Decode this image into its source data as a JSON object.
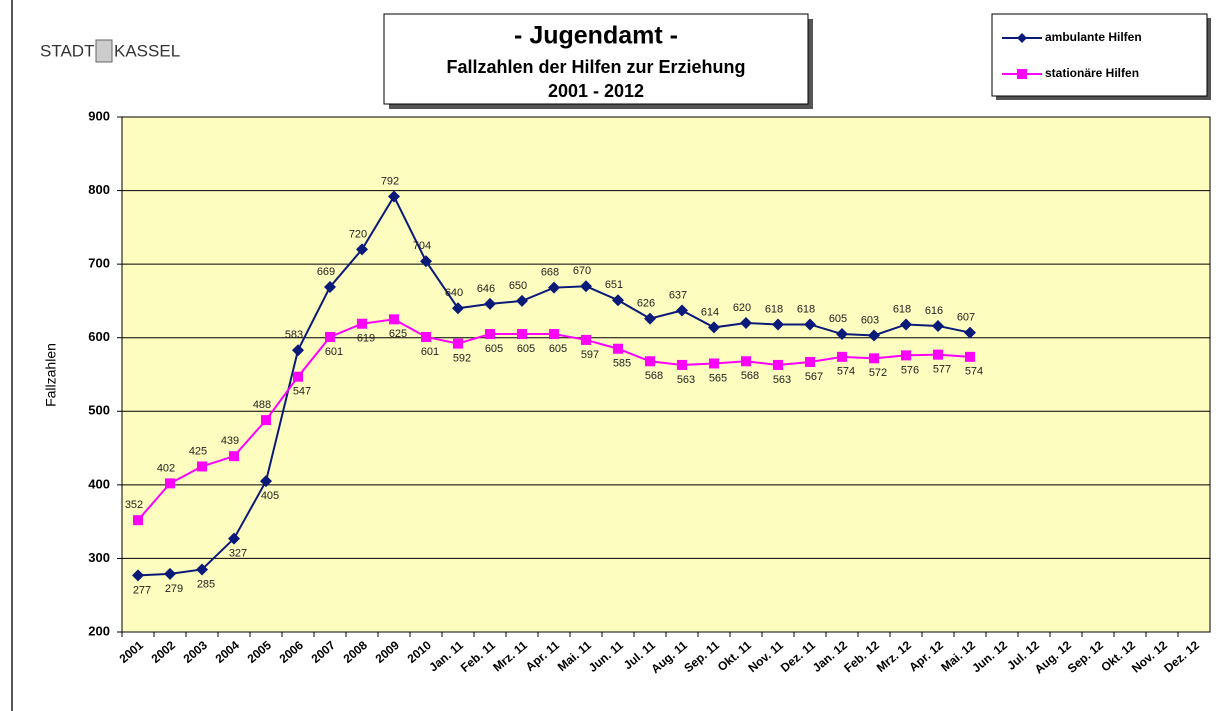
{
  "chart_data": {
    "type": "line",
    "logo": [
      "STADT",
      "KASSEL"
    ],
    "title": "- Jugendamt -",
    "subtitle": [
      "Fallzahlen der Hilfen zur Erziehung",
      "2001 - 2012"
    ],
    "ylabel": "Fallzahlen",
    "categories": [
      "2001",
      "2002",
      "2003",
      "2004",
      "2005",
      "2006",
      "2007",
      "2008",
      "2009",
      "2010",
      "Jan. 11",
      "Feb. 11",
      "Mrz. 11",
      "Apr. 11",
      "Mai. 11",
      "Jun. 11",
      "Jul. 11",
      "Aug. 11",
      "Sep. 11",
      "Okt. 11",
      "Nov. 11",
      "Dez. 11",
      "Jan. 12",
      "Feb. 12",
      "Mrz. 12",
      "Apr. 12",
      "Mai. 12",
      "Jun. 12",
      "Jul. 12",
      "Aug. 12",
      "Sep. 12",
      "Okt. 12",
      "Nov. 12",
      "Dez. 12"
    ],
    "series": [
      {
        "name": "ambulante Hilfen",
        "color": "#0a1a78",
        "marker": "diamond",
        "values": [
          277,
          279,
          285,
          327,
          405,
          583,
          669,
          720,
          792,
          704,
          640,
          646,
          650,
          668,
          670,
          651,
          626,
          637,
          614,
          620,
          618,
          618,
          605,
          603,
          618,
          616,
          607,
          null,
          null,
          null,
          null,
          null,
          null,
          null
        ]
      },
      {
        "name": "stationäre Hilfen",
        "color": "#ff00ff",
        "marker": "square",
        "values": [
          352,
          402,
          425,
          439,
          488,
          547,
          601,
          619,
          625,
          601,
          592,
          605,
          605,
          605,
          597,
          585,
          568,
          563,
          565,
          568,
          563,
          567,
          574,
          572,
          576,
          577,
          574,
          null,
          null,
          null,
          null,
          null,
          null,
          null
        ]
      }
    ],
    "ylim": [
      200,
      900
    ],
    "yticks": [
      200,
      300,
      400,
      500,
      600,
      700,
      800,
      900
    ],
    "grid": true,
    "legend": "top-right",
    "background": "#fdfdc0"
  }
}
